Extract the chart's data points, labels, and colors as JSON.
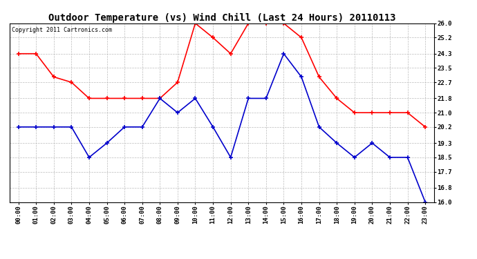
{
  "title": "Outdoor Temperature (vs) Wind Chill (Last 24 Hours) 20110113",
  "copyright": "Copyright 2011 Cartronics.com",
  "hours": [
    "00:00",
    "01:00",
    "02:00",
    "03:00",
    "04:00",
    "05:00",
    "06:00",
    "07:00",
    "08:00",
    "09:00",
    "10:00",
    "11:00",
    "12:00",
    "13:00",
    "14:00",
    "15:00",
    "16:00",
    "17:00",
    "18:00",
    "19:00",
    "20:00",
    "21:00",
    "22:00",
    "23:00"
  ],
  "temp_red": [
    24.3,
    24.3,
    23.0,
    22.7,
    21.8,
    21.8,
    21.8,
    21.8,
    21.8,
    22.7,
    26.0,
    25.2,
    24.3,
    26.0,
    26.0,
    26.0,
    25.2,
    23.0,
    21.8,
    21.0,
    21.0,
    21.0,
    21.0,
    20.2
  ],
  "wind_blue": [
    20.2,
    20.2,
    20.2,
    20.2,
    18.5,
    19.3,
    20.2,
    20.2,
    21.8,
    21.0,
    21.8,
    20.2,
    18.5,
    21.8,
    21.8,
    24.3,
    23.0,
    20.2,
    19.3,
    18.5,
    19.3,
    18.5,
    18.5,
    16.0
  ],
  "red_color": "#ff0000",
  "blue_color": "#0000cc",
  "bg_color": "#ffffff",
  "grid_color": "#bbbbbb",
  "ylim_min": 16.0,
  "ylim_max": 26.0,
  "yticks": [
    16.0,
    16.8,
    17.7,
    18.5,
    19.3,
    20.2,
    21.0,
    21.8,
    22.7,
    23.5,
    24.3,
    25.2,
    26.0
  ],
  "title_fontsize": 10,
  "tick_fontsize": 6.5,
  "copyright_fontsize": 6,
  "marker_size": 4,
  "linewidth": 1.2
}
